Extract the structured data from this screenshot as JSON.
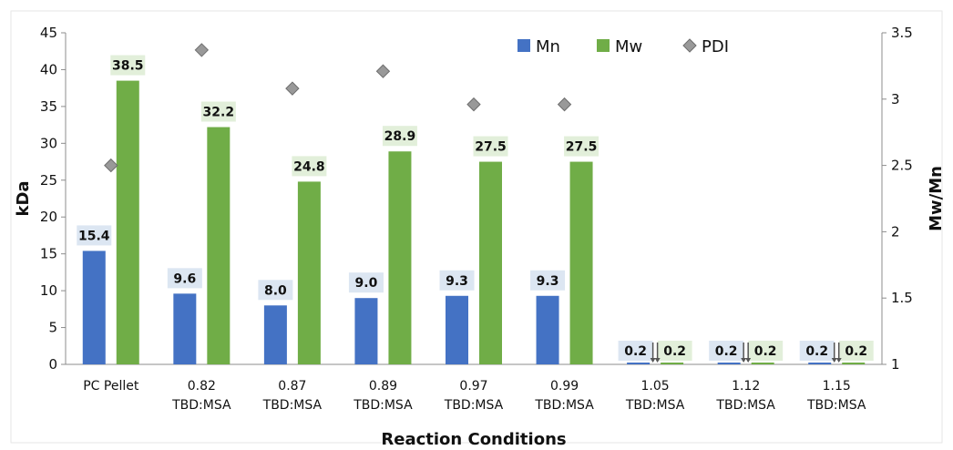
{
  "chart_data": {
    "type": "bar",
    "categories": [
      [
        "PC Pellet"
      ],
      [
        "0.82",
        "TBD:MSA"
      ],
      [
        "0.87",
        "TBD:MSA"
      ],
      [
        "0.89",
        "TBD:MSA"
      ],
      [
        "0.97",
        "TBD:MSA"
      ],
      [
        "0.99",
        "TBD:MSA"
      ],
      [
        "1.05",
        "TBD:MSA"
      ],
      [
        "1.12",
        "TBD:MSA"
      ],
      [
        "1.15",
        "TBD:MSA"
      ]
    ],
    "series": [
      {
        "name": "Mn",
        "kind": "bar",
        "axis": "left",
        "color": "#4472C4",
        "label_bg": "#DCE6F2",
        "values": [
          15.4,
          9.6,
          8.0,
          9.0,
          9.3,
          9.3,
          0.2,
          0.2,
          0.2
        ],
        "labels": [
          "15.4",
          "9.6",
          "8.0",
          "9.0",
          "9.3",
          "9.3",
          "0.2",
          "0.2",
          "0.2"
        ]
      },
      {
        "name": "Mw",
        "kind": "bar",
        "axis": "left",
        "color": "#70AD47",
        "label_bg": "#E2EFDA",
        "values": [
          38.5,
          32.2,
          24.8,
          28.9,
          27.5,
          27.5,
          0.2,
          0.2,
          0.2
        ],
        "labels": [
          "38.5",
          "32.2",
          "24.8",
          "28.9",
          "27.5",
          "27.5",
          "0.2",
          "0.2",
          "0.2"
        ]
      },
      {
        "name": "PDI",
        "kind": "marker",
        "marker": "diamond",
        "axis": "right",
        "color": "#999999",
        "values": [
          2.5,
          3.37,
          3.08,
          3.21,
          2.96,
          2.96,
          null,
          null,
          null
        ]
      }
    ],
    "xlabel": "Reaction Conditions",
    "ylabel": "kDa",
    "y2label": "Mw/Mn",
    "ylim": [
      0,
      45
    ],
    "y2lim": [
      1,
      3.5
    ],
    "yticks": [
      "0",
      "5",
      "10",
      "15",
      "20",
      "25",
      "30",
      "35",
      "40",
      "45"
    ],
    "y2ticks": [
      "1",
      "1.5",
      "2",
      "2.5",
      "3",
      "3.5"
    ],
    "legend_position": "top-right",
    "grid": false
  }
}
